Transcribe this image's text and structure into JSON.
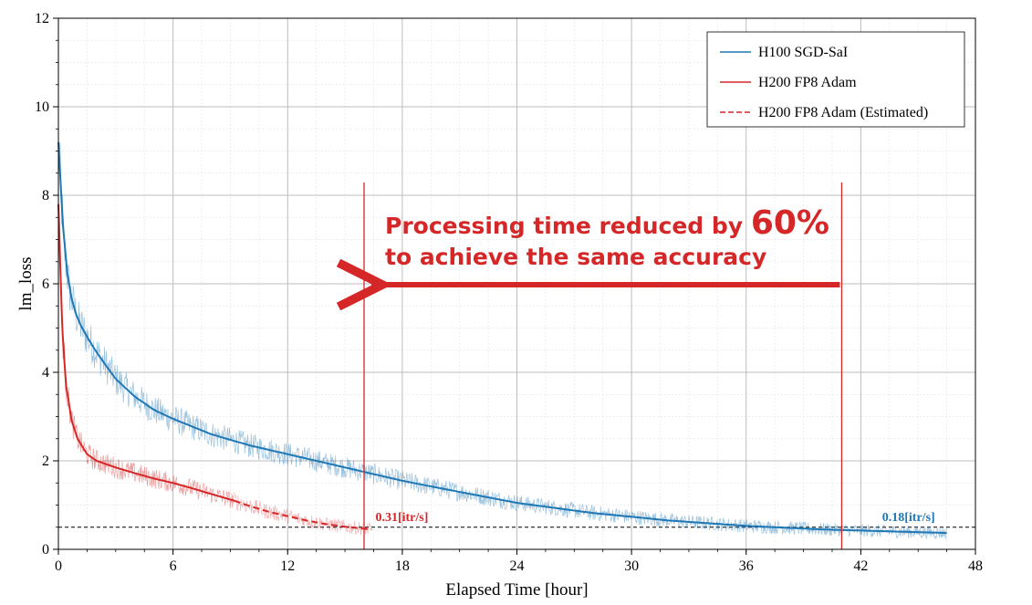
{
  "chart_data": {
    "type": "line",
    "xlabel": "Elapsed Time [hour]",
    "ylabel": "lm_loss",
    "xlim": [
      0,
      48
    ],
    "ylim": [
      0,
      12
    ],
    "xticks": [
      "0",
      "6",
      "12",
      "18",
      "24",
      "30",
      "36",
      "42",
      "48"
    ],
    "yticks": [
      "0",
      "2",
      "4",
      "6",
      "8",
      "10",
      "12"
    ],
    "grid": true,
    "legend_position": "top-right",
    "series": [
      {
        "name": "H100 SGD-SaI",
        "color": "#1f77b4",
        "style": "solid",
        "x": [
          0,
          0.3,
          0.6,
          1,
          1.5,
          2,
          3,
          4,
          5,
          6,
          8,
          10,
          12,
          14,
          16,
          18,
          20,
          24,
          28,
          32,
          36,
          40,
          44,
          46.5
        ],
        "y": [
          9.2,
          6.8,
          5.8,
          5.2,
          4.8,
          4.45,
          3.85,
          3.45,
          3.15,
          2.95,
          2.6,
          2.35,
          2.15,
          1.95,
          1.75,
          1.55,
          1.38,
          1.05,
          0.82,
          0.65,
          0.53,
          0.45,
          0.4,
          0.37
        ]
      },
      {
        "name": "H200 FP8 Adam",
        "color": "#d62728",
        "style": "solid",
        "x": [
          0,
          0.2,
          0.4,
          0.7,
          1,
          1.5,
          2,
          3,
          4,
          5,
          6,
          7,
          8,
          9.2
        ],
        "y": [
          7.8,
          5.0,
          3.7,
          2.9,
          2.5,
          2.15,
          2.0,
          1.85,
          1.72,
          1.6,
          1.5,
          1.38,
          1.25,
          1.1
        ]
      },
      {
        "name": "H200 FP8 Adam (Estimated)",
        "color": "#d62728",
        "style": "dashed",
        "x": [
          9.2,
          10,
          11,
          12,
          13,
          14,
          15,
          16.4
        ],
        "y": [
          1.1,
          0.98,
          0.85,
          0.75,
          0.65,
          0.57,
          0.51,
          0.45
        ]
      }
    ],
    "reference_line": {
      "y": 0.5,
      "color": "#000000",
      "style": "dashed"
    },
    "markers": [
      {
        "x": 16,
        "color": "#d62728"
      },
      {
        "x": 41,
        "color": "#d62728"
      }
    ],
    "annotation": {
      "line1_prefix": "Processing time reduced by ",
      "line1_highlight": "60%",
      "line2": "to achieve the same accuracy",
      "arrow_from_x": 41,
      "arrow_to_x": 16,
      "arrow_y": 6,
      "color": "#d62728"
    },
    "rate_labels": [
      {
        "text": "0.31[itr/s]",
        "x": 16.5,
        "y": 0.6,
        "color": "#d62728"
      },
      {
        "text": "0.18[itr/s]",
        "x": 44.5,
        "y": 0.6,
        "color": "#1f77b4"
      }
    ]
  }
}
